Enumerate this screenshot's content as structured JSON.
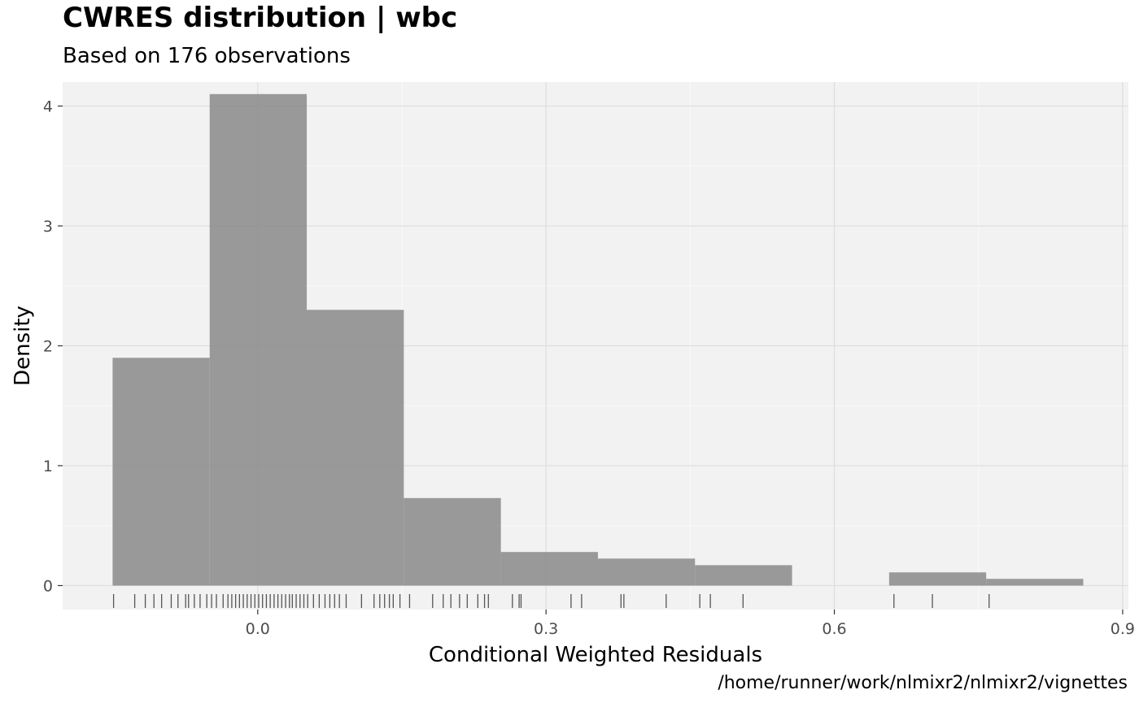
{
  "chart_data": {
    "type": "histogram",
    "title": "CWRES distribution | wbc",
    "subtitle": "Based on 176 observations",
    "xlabel": "Conditional Weighted Residuals",
    "ylabel": "Density",
    "caption": "/home/runner/work/nlmixr2/nlmixr2/vignettes",
    "xlim": [
      -0.203,
      0.906
    ],
    "ylim": [
      -0.2,
      4.2
    ],
    "x_ticks": [
      0.0,
      0.3,
      0.6,
      0.9
    ],
    "x_tick_labels": [
      "0.0",
      "0.3",
      "0.6",
      "0.9"
    ],
    "y_ticks": [
      0,
      1,
      2,
      3,
      4
    ],
    "y_tick_labels": [
      "0",
      "1",
      "2",
      "3",
      "4"
    ],
    "grid": true,
    "bar_color": "#8c8c8c",
    "panel_background": "#f2f2f2",
    "bins": [
      {
        "x0": -0.151,
        "x1": -0.05,
        "density": 1.9
      },
      {
        "x0": -0.05,
        "x1": 0.051,
        "density": 4.1
      },
      {
        "x0": 0.051,
        "x1": 0.152,
        "density": 2.3
      },
      {
        "x0": 0.152,
        "x1": 0.253,
        "density": 0.73
      },
      {
        "x0": 0.253,
        "x1": 0.354,
        "density": 0.28
      },
      {
        "x0": 0.354,
        "x1": 0.455,
        "density": 0.225
      },
      {
        "x0": 0.455,
        "x1": 0.556,
        "density": 0.17
      },
      {
        "x0": 0.556,
        "x1": 0.657,
        "density": 0.0
      },
      {
        "x0": 0.657,
        "x1": 0.758,
        "density": 0.11
      },
      {
        "x0": 0.758,
        "x1": 0.859,
        "density": 0.056
      }
    ],
    "rug": [
      -0.15,
      -0.128,
      -0.117,
      -0.108,
      -0.1,
      -0.09,
      -0.083,
      -0.075,
      -0.072,
      -0.066,
      -0.06,
      -0.053,
      -0.048,
      -0.043,
      -0.036,
      -0.031,
      -0.027,
      -0.023,
      -0.019,
      -0.015,
      -0.011,
      -0.007,
      -0.003,
      0.001,
      0.005,
      0.009,
      0.013,
      0.017,
      0.021,
      0.025,
      0.029,
      0.033,
      0.036,
      0.04,
      0.044,
      0.048,
      0.052,
      0.058,
      0.064,
      0.07,
      0.075,
      0.08,
      0.085,
      0.092,
      0.108,
      0.121,
      0.127,
      0.132,
      0.137,
      0.141,
      0.148,
      0.158,
      0.182,
      0.193,
      0.201,
      0.21,
      0.218,
      0.229,
      0.236,
      0.24,
      0.265,
      0.272,
      0.274,
      0.326,
      0.337,
      0.378,
      0.381,
      0.425,
      0.46,
      0.471,
      0.505,
      0.662,
      0.702,
      0.761
    ]
  }
}
